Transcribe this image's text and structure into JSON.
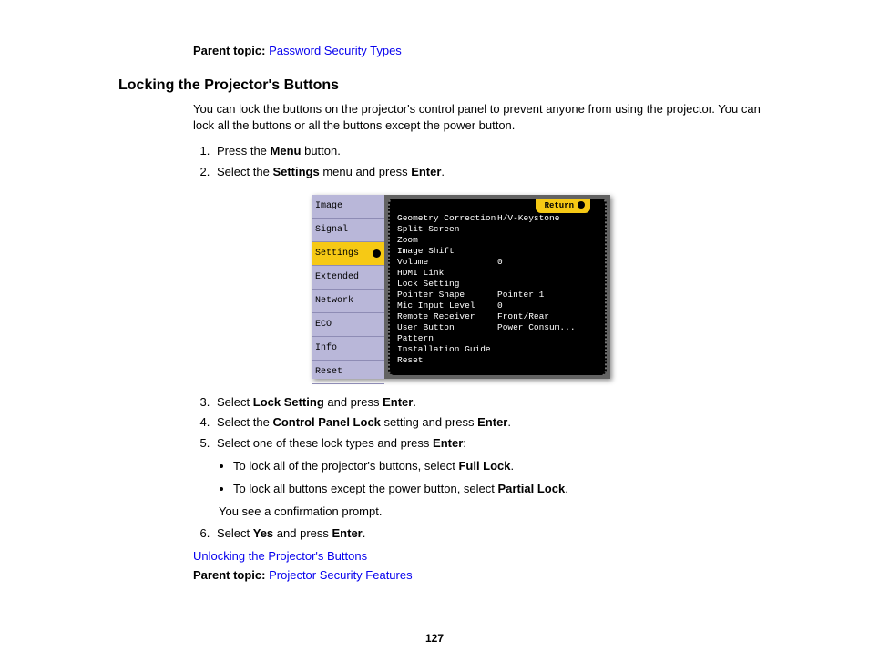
{
  "parent_topic_top": {
    "label": "Parent topic:",
    "link_text": "Password Security Types"
  },
  "heading": "Locking the Projector's Buttons",
  "intro": "You can lock the buttons on the projector's control panel to prevent anyone from using the projector. You can lock all the buttons or all the buttons except the power button.",
  "steps": {
    "s1_a": "Press the ",
    "s1_b": "Menu",
    "s1_c": " button.",
    "s2_a": "Select the ",
    "s2_b": "Settings",
    "s2_c": " menu and press ",
    "s2_d": "Enter",
    "s2_e": ".",
    "s3_a": "Select ",
    "s3_b": "Lock Setting",
    "s3_c": " and press ",
    "s3_d": "Enter",
    "s3_e": ".",
    "s4_a": "Select the ",
    "s4_b": "Control Panel Lock",
    "s4_c": " setting and press ",
    "s4_d": "Enter",
    "s4_e": ".",
    "s5_a": "Select one of these lock types and press ",
    "s5_b": "Enter",
    "s5_c": ":",
    "b1_a": "To lock all of the projector's buttons, select ",
    "b1_b": "Full Lock",
    "b1_c": ".",
    "b2_a": "To lock all buttons except the power button, select ",
    "b2_b": "Partial Lock",
    "b2_c": ".",
    "confirm": "You see a confirmation prompt.",
    "s6_a": "Select ",
    "s6_b": "Yes",
    "s6_c": " and press ",
    "s6_d": "Enter",
    "s6_e": "."
  },
  "related_link": "Unlocking the Projector's Buttons",
  "parent_topic_bottom": {
    "label": "Parent topic:",
    "link_text": "Projector Security Features"
  },
  "page_number": "127",
  "osd": {
    "return_label": "Return",
    "tabs": [
      "Image",
      "Signal",
      "Settings",
      "Extended",
      "Network",
      "ECO",
      "Info",
      "Reset"
    ],
    "selected_tab_index": 2,
    "rows": [
      {
        "k": "Geometry Correction",
        "v": "H/V-Keystone"
      },
      {
        "k": "Split Screen",
        "v": ""
      },
      {
        "k": "Zoom",
        "v": ""
      },
      {
        "k": "Image Shift",
        "v": ""
      },
      {
        "k": "Volume",
        "v": "0"
      },
      {
        "k": "HDMI Link",
        "v": ""
      },
      {
        "k": "Lock Setting",
        "v": ""
      },
      {
        "k": "Pointer Shape",
        "v": "Pointer 1"
      },
      {
        "k": "Mic Input Level",
        "v": "0"
      },
      {
        "k": "Remote Receiver",
        "v": "Front/Rear"
      },
      {
        "k": "User Button",
        "v": "Power Consum..."
      },
      {
        "k": "Pattern",
        "v": ""
      },
      {
        "k": "Installation Guide",
        "v": ""
      },
      {
        "k": "Reset",
        "v": ""
      }
    ],
    "colors": {
      "sidebar_bg": "#b9b7d9",
      "selected_bg": "#f6c915",
      "panel_bg": "#636363",
      "inner_bg": "#000000",
      "text": "#ffffff"
    }
  },
  "link_color": "#0600ee"
}
